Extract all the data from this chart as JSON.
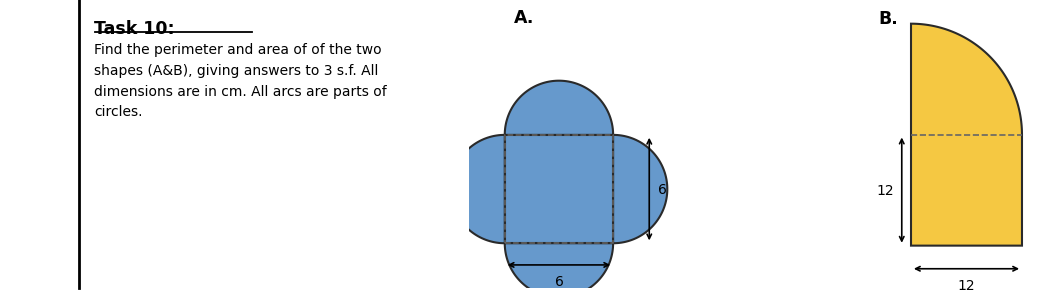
{
  "title_text": "Task 10:",
  "body_text": "Find the perimeter and area of of the two\nshapes (A&B), giving answers to 3 s.f. All\ndimensions are in cm. All arcs are parts of\ncircles.",
  "label_A": "A.",
  "label_B": "B.",
  "shape_A_color": "#6699CC",
  "shape_A_edge": "#2a2a2a",
  "shape_B_color": "#F5C842",
  "shape_B_edge": "#2a2a2a",
  "dashed_color": "#666666",
  "background": "#ffffff",
  "dim6": "6",
  "dim12": "12"
}
